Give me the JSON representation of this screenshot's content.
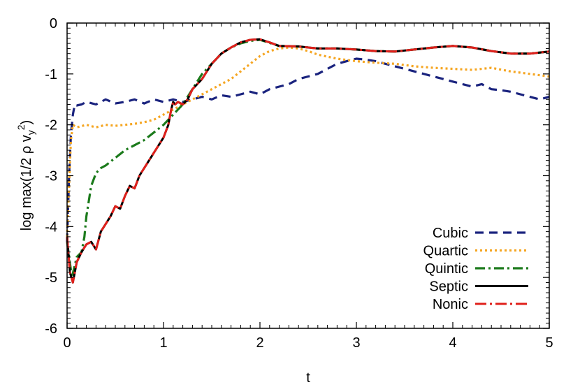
{
  "chart_data": {
    "type": "line",
    "title": "",
    "xlabel": "t",
    "ylabel_parts": [
      "log max(1/2 ρ v",
      "y",
      "2",
      ")"
    ],
    "xlim": [
      0,
      5
    ],
    "ylim": [
      -6,
      0
    ],
    "xticks": [
      "0",
      "1",
      "2",
      "3",
      "4",
      "5"
    ],
    "yticks": [
      "0",
      "-1",
      "-2",
      "-3",
      "-4",
      "-5",
      "-6"
    ],
    "grid": false,
    "legend_position": "bottom-right",
    "series": [
      {
        "name": "Cubic",
        "color": "#1a237e",
        "dash": "12,8",
        "x": [
          0,
          0.02,
          0.04,
          0.06,
          0.08,
          0.1,
          0.15,
          0.2,
          0.3,
          0.4,
          0.5,
          0.6,
          0.7,
          0.8,
          0.9,
          1.0,
          1.1,
          1.2,
          1.3,
          1.4,
          1.5,
          1.6,
          1.7,
          1.8,
          1.9,
          2.0,
          2.1,
          2.2,
          2.3,
          2.4,
          2.5,
          2.6,
          2.7,
          2.8,
          2.9,
          3.0,
          3.1,
          3.2,
          3.3,
          3.4,
          3.5,
          3.6,
          3.7,
          3.8,
          3.9,
          4.0,
          4.1,
          4.2,
          4.3,
          4.4,
          4.5,
          4.6,
          4.7,
          4.8,
          4.9,
          5.0
        ],
        "y": [
          -4.3,
          -3.0,
          -2.2,
          -1.8,
          -1.6,
          -1.62,
          -1.6,
          -1.55,
          -1.6,
          -1.5,
          -1.58,
          -1.55,
          -1.5,
          -1.58,
          -1.5,
          -1.55,
          -1.5,
          -1.55,
          -1.5,
          -1.45,
          -1.5,
          -1.42,
          -1.45,
          -1.4,
          -1.35,
          -1.4,
          -1.3,
          -1.25,
          -1.2,
          -1.1,
          -1.05,
          -1.0,
          -0.9,
          -0.8,
          -0.75,
          -0.7,
          -0.72,
          -0.75,
          -0.8,
          -0.85,
          -0.9,
          -0.95,
          -1.0,
          -1.05,
          -1.1,
          -1.15,
          -1.2,
          -1.25,
          -1.2,
          -1.3,
          -1.32,
          -1.35,
          -1.4,
          -1.45,
          -1.5,
          -1.45
        ]
      },
      {
        "name": "Quartic",
        "color": "#f5a623",
        "dash": "3,4",
        "x": [
          0,
          0.02,
          0.04,
          0.06,
          0.1,
          0.2,
          0.3,
          0.4,
          0.5,
          0.6,
          0.7,
          0.8,
          0.9,
          1.0,
          1.1,
          1.2,
          1.3,
          1.4,
          1.5,
          1.6,
          1.7,
          1.8,
          1.9,
          2.0,
          2.1,
          2.2,
          2.3,
          2.4,
          2.5,
          2.6,
          2.8,
          3.0,
          3.2,
          3.4,
          3.6,
          3.8,
          4.0,
          4.2,
          4.4,
          4.6,
          4.8,
          5.0
        ],
        "y": [
          -4.2,
          -3.2,
          -2.3,
          -2.0,
          -2.05,
          -2.0,
          -2.05,
          -2.0,
          -2.02,
          -2.0,
          -1.98,
          -1.95,
          -1.9,
          -1.8,
          -1.7,
          -1.6,
          -1.5,
          -1.4,
          -1.3,
          -1.2,
          -1.1,
          -0.95,
          -0.8,
          -0.65,
          -0.55,
          -0.5,
          -0.48,
          -0.5,
          -0.55,
          -0.62,
          -0.7,
          -0.75,
          -0.78,
          -0.8,
          -0.85,
          -0.88,
          -0.9,
          -0.92,
          -0.88,
          -0.95,
          -1.0,
          -1.05
        ]
      },
      {
        "name": "Quintic",
        "color": "#1b7a1b",
        "dash": "14,5,3,5",
        "x": [
          0,
          0.05,
          0.1,
          0.15,
          0.18,
          0.2,
          0.25,
          0.3,
          0.35,
          0.4,
          0.5,
          0.6,
          0.7,
          0.8,
          0.9,
          1.0,
          1.1,
          1.2,
          1.3,
          1.4,
          1.5,
          1.6,
          1.7,
          1.8,
          1.9,
          2.0,
          2.2,
          2.4,
          2.6,
          2.8,
          3.0,
          3.2,
          3.4,
          3.6,
          3.8,
          4.0,
          4.2,
          4.4,
          4.6,
          4.8,
          5.0
        ],
        "y": [
          -4.3,
          -5.0,
          -4.6,
          -4.5,
          -4.2,
          -3.8,
          -3.2,
          -2.95,
          -2.85,
          -2.8,
          -2.65,
          -2.5,
          -2.4,
          -2.3,
          -2.15,
          -2.0,
          -1.8,
          -1.6,
          -1.3,
          -1.0,
          -0.8,
          -0.6,
          -0.48,
          -0.4,
          -0.35,
          -0.33,
          -0.45,
          -0.46,
          -0.5,
          -0.5,
          -0.52,
          -0.55,
          -0.56,
          -0.52,
          -0.48,
          -0.45,
          -0.48,
          -0.55,
          -0.6,
          -0.6,
          -0.56
        ]
      },
      {
        "name": "Septic",
        "color": "#000000",
        "dash": "",
        "x": [
          0,
          0.03,
          0.06,
          0.1,
          0.15,
          0.2,
          0.25,
          0.3,
          0.35,
          0.4,
          0.45,
          0.5,
          0.55,
          0.6,
          0.65,
          0.7,
          0.75,
          0.8,
          0.85,
          0.9,
          0.95,
          1.0,
          1.05,
          1.08,
          1.1,
          1.12,
          1.15,
          1.2,
          1.25,
          1.3,
          1.4,
          1.5,
          1.6,
          1.7,
          1.8,
          1.9,
          2.0,
          2.1,
          2.2,
          2.4,
          2.6,
          2.8,
          3.0,
          3.2,
          3.4,
          3.6,
          3.8,
          4.0,
          4.2,
          4.4,
          4.6,
          4.8,
          5.0
        ],
        "y": [
          -4.2,
          -4.9,
          -5.1,
          -4.7,
          -4.5,
          -4.35,
          -4.3,
          -4.45,
          -4.1,
          -3.95,
          -3.8,
          -3.6,
          -3.65,
          -3.4,
          -3.2,
          -3.25,
          -3.0,
          -2.85,
          -2.7,
          -2.55,
          -2.4,
          -2.25,
          -2.0,
          -1.7,
          -1.55,
          -1.6,
          -1.55,
          -1.6,
          -1.5,
          -1.3,
          -1.1,
          -0.8,
          -0.6,
          -0.48,
          -0.38,
          -0.33,
          -0.32,
          -0.38,
          -0.45,
          -0.46,
          -0.5,
          -0.5,
          -0.52,
          -0.55,
          -0.56,
          -0.52,
          -0.48,
          -0.45,
          -0.48,
          -0.55,
          -0.6,
          -0.6,
          -0.56
        ]
      },
      {
        "name": "Nonic",
        "color": "#e0201b",
        "dash": "16,5,3,5",
        "x": [
          0,
          0.03,
          0.06,
          0.1,
          0.15,
          0.2,
          0.25,
          0.3,
          0.35,
          0.4,
          0.45,
          0.5,
          0.55,
          0.6,
          0.65,
          0.7,
          0.75,
          0.8,
          0.85,
          0.9,
          0.95,
          1.0,
          1.05,
          1.08,
          1.1,
          1.12,
          1.15,
          1.2,
          1.25,
          1.3,
          1.4,
          1.5,
          1.6,
          1.7,
          1.8,
          1.9,
          2.0,
          2.1,
          2.2,
          2.4,
          2.6,
          2.8,
          3.0,
          3.2,
          3.4,
          3.6,
          3.8,
          4.0,
          4.2,
          4.4,
          4.6,
          4.8,
          5.0
        ],
        "y": [
          -4.2,
          -4.9,
          -5.1,
          -4.7,
          -4.5,
          -4.35,
          -4.3,
          -4.45,
          -4.1,
          -3.95,
          -3.8,
          -3.6,
          -3.65,
          -3.4,
          -3.2,
          -3.25,
          -3.0,
          -2.85,
          -2.7,
          -2.55,
          -2.4,
          -2.25,
          -2.0,
          -1.7,
          -1.55,
          -1.6,
          -1.55,
          -1.6,
          -1.5,
          -1.3,
          -1.1,
          -0.8,
          -0.6,
          -0.48,
          -0.38,
          -0.33,
          -0.32,
          -0.38,
          -0.45,
          -0.46,
          -0.5,
          -0.5,
          -0.52,
          -0.55,
          -0.56,
          -0.52,
          -0.48,
          -0.45,
          -0.48,
          -0.55,
          -0.6,
          -0.6,
          -0.56
        ]
      }
    ]
  }
}
